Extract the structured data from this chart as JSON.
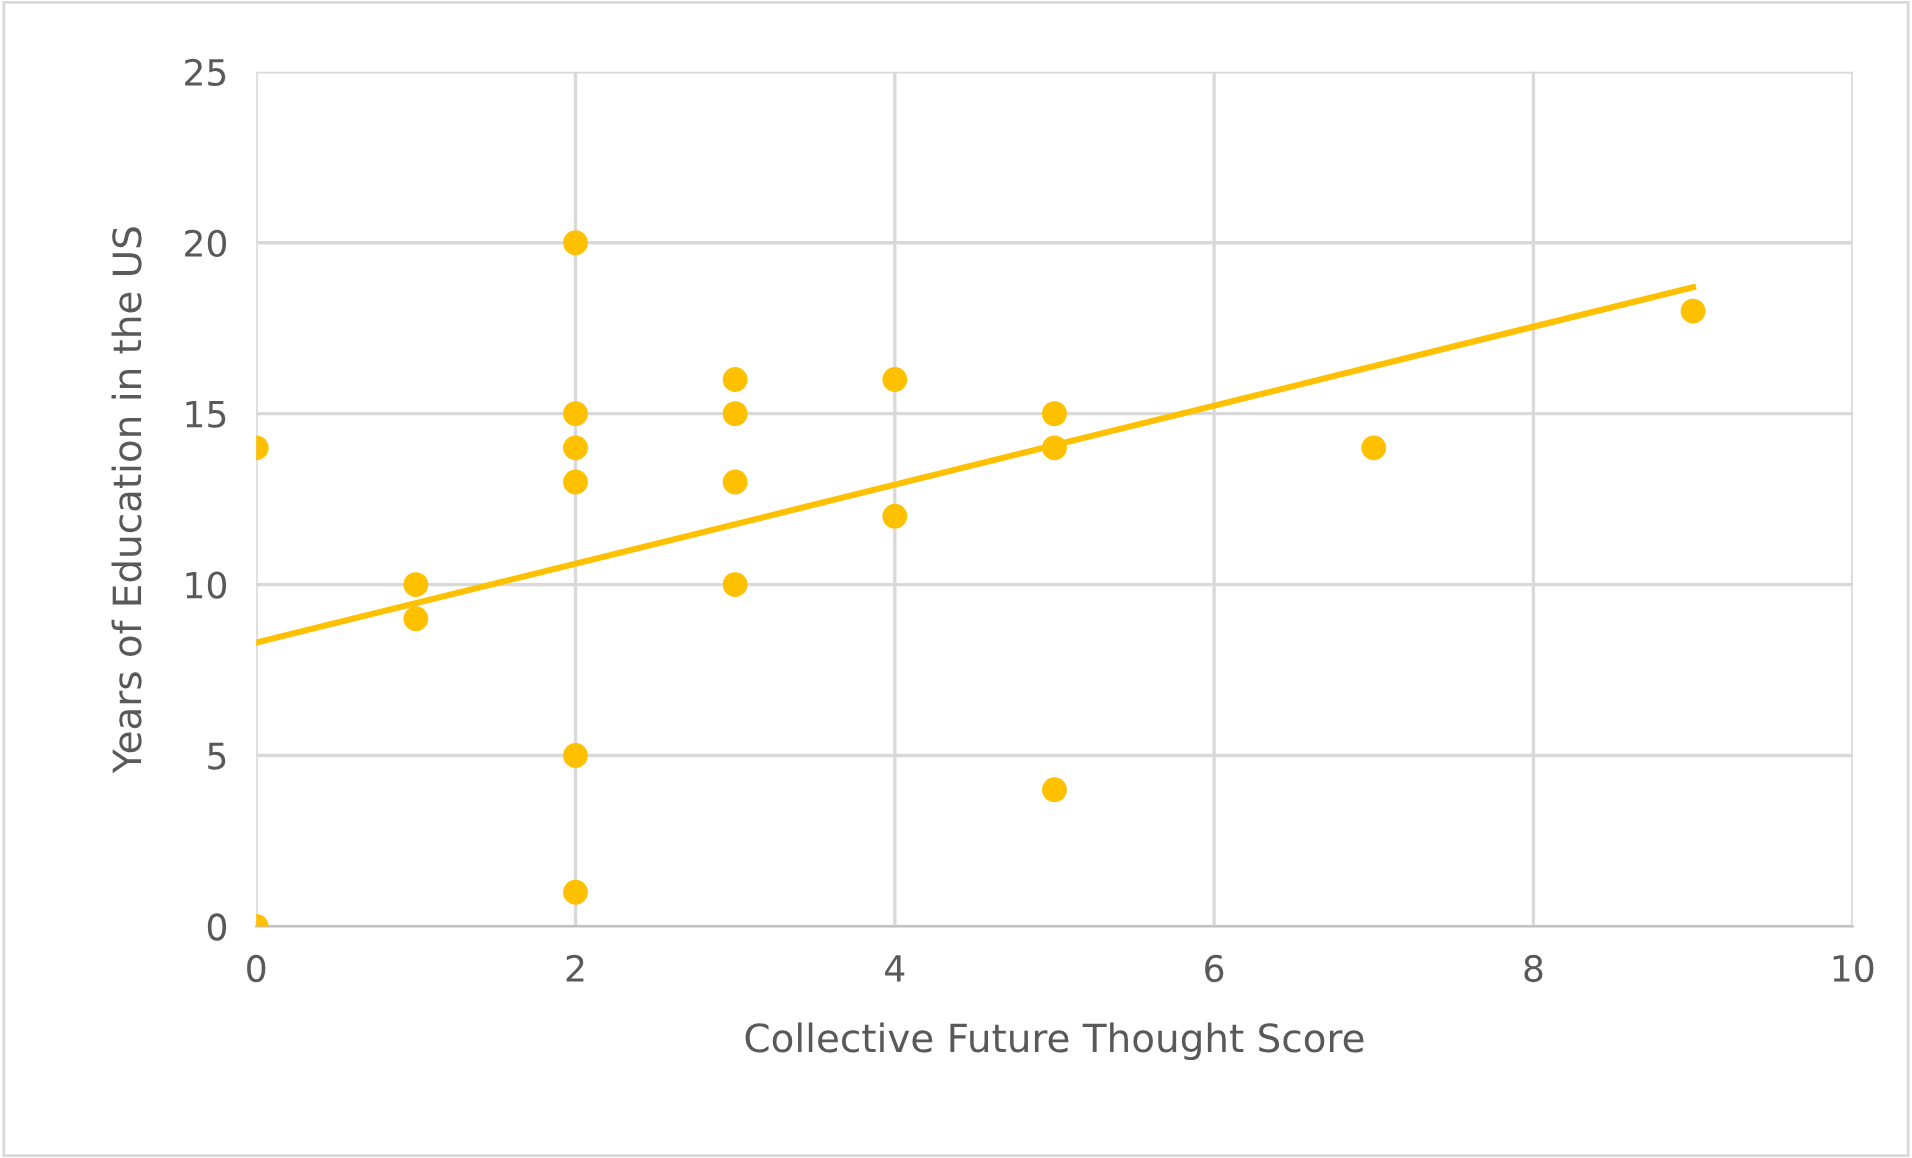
{
  "chart_data": {
    "type": "scatter",
    "xlabel": "Collective Future Thought Score",
    "ylabel": "Years of Education in the US",
    "series": [
      {
        "color": "#ffc000",
        "marker": "circle",
        "x": [
          0,
          0,
          1,
          1,
          2,
          2,
          2,
          2,
          2,
          2,
          3,
          3,
          3,
          3,
          4,
          4,
          5,
          5,
          5,
          7,
          9
        ],
        "values": [
          14,
          0,
          10,
          9,
          20,
          15,
          14,
          13,
          5,
          1,
          16,
          15,
          13,
          10,
          16,
          12,
          15,
          14,
          4,
          14,
          18
        ]
      },
      {
        "type": "line",
        "color": "#ffc000",
        "marker": "none",
        "line_style": "solid",
        "x": [
          0,
          9
        ],
        "values": [
          8.3,
          18.7
        ]
      }
    ],
    "xlim": [
      0,
      10
    ],
    "xticks": [
      0,
      2,
      4,
      6,
      8,
      10
    ],
    "ylim": [
      0,
      25
    ],
    "yticks": [
      0,
      5,
      10,
      15,
      20,
      25
    ],
    "grid": true
  }
}
